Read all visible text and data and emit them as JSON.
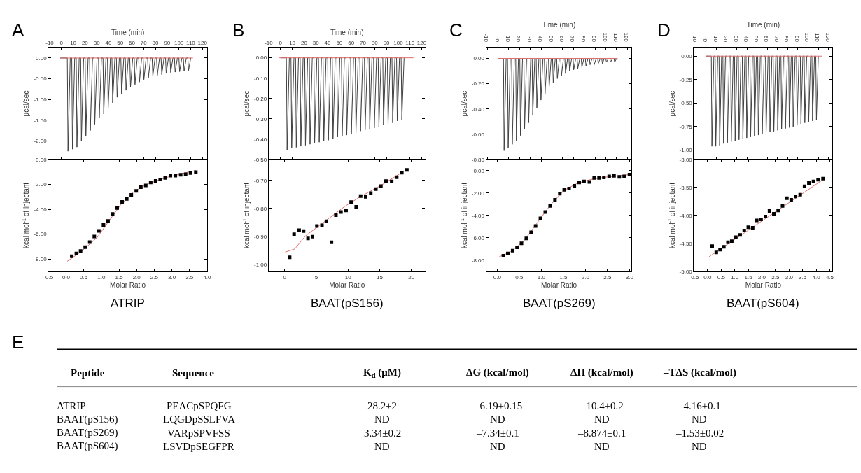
{
  "chart_data": [
    {
      "type": "line",
      "title": "A",
      "xlabel": "Time (min)",
      "ylabel": "μcal/sec",
      "xlim": [
        -11,
        124
      ],
      "xticks": [
        -10,
        0,
        10,
        20,
        30,
        40,
        50,
        60,
        70,
        80,
        90,
        100,
        110,
        120
      ],
      "ylim": [
        -2.45,
        0.25
      ],
      "yticks": [
        {
          "value": 0,
          "label": "0.00"
        },
        {
          "value": -0.5,
          "label": "-0.50"
        },
        {
          "value": -1,
          "label": "-1.00"
        },
        {
          "value": -1.5,
          "label": "-1.50"
        },
        {
          "value": -2,
          "label": "-2.00"
        }
      ],
      "series": [
        {
          "color": "#404040",
          "marker": "none",
          "x": [
            -1,
            5,
            5.6,
            7.5,
            8.8,
            9.4,
            11.3,
            12.6,
            13.2,
            15.1,
            16.4,
            17,
            18.9,
            20.2,
            20.8,
            22.7,
            24,
            24.6,
            26.5,
            27.8,
            28.4,
            30.3,
            31.6,
            32.2,
            34.1,
            35.4,
            36,
            37.9,
            39.2,
            39.8,
            41.7,
            43,
            43.6,
            45.5,
            46.8,
            47.4,
            49.3,
            50.6,
            51.2,
            53.1,
            54.4,
            55,
            56.9,
            58.2,
            58.8,
            60.7,
            62,
            62.6,
            64.5,
            65.8,
            66.4,
            68.3,
            69.6,
            70.2,
            72.1,
            73.4,
            74,
            75.9,
            77.2,
            77.8,
            79.7,
            81,
            81.6,
            83.5,
            84.8,
            85.4,
            87.3,
            88.6,
            89.2,
            91.1,
            92.4,
            93,
            94.9,
            96.2,
            96.8,
            98.7,
            100,
            100.6,
            102.5,
            103.8,
            104.4,
            106.3,
            107.6,
            108.2,
            110.1
          ],
          "values": [
            0,
            0,
            -2.25,
            0,
            0,
            -2.2,
            0,
            0,
            -2.15,
            0,
            0,
            -2.0,
            0,
            0,
            -1.88,
            0,
            0,
            -1.75,
            0,
            0,
            -1.6,
            0,
            0,
            -1.45,
            0,
            0,
            -1.35,
            0,
            0,
            -1.2,
            0,
            0,
            -1.08,
            0,
            0,
            -0.95,
            0,
            0,
            -0.88,
            0,
            0,
            -0.78,
            0,
            0,
            -0.7,
            0,
            0,
            -0.64,
            0,
            0,
            -0.58,
            0,
            0,
            -0.52,
            0,
            0,
            -0.48,
            0,
            0,
            -0.44,
            0,
            0,
            -0.42,
            0,
            0,
            -0.4,
            0,
            0,
            -0.37,
            0,
            0,
            -0.35,
            0,
            0,
            -0.34,
            0,
            0,
            -0.33,
            0,
            0,
            -0.32,
            0,
            0,
            -0.3,
            0
          ]
        },
        {
          "color": "#e07070",
          "marker": "none",
          "x": [
            -1,
            112
          ],
          "values": [
            0,
            0
          ]
        }
      ]
    },
    {
      "type": "scatter",
      "xlabel": "Molar Ratio",
      "ylabel": "kcal mol$^{-1}$ of injectant",
      "annotations": [
        "ATRIP"
      ],
      "xlim": [
        -0.5,
        4.0
      ],
      "xticks": [
        -0.5,
        {
          "value": 0,
          "label": "0.0"
        },
        0.5,
        {
          "value": 1,
          "label": "1.0"
        },
        1.5,
        {
          "value": 2,
          "label": "2.0"
        },
        2.5,
        {
          "value": 3,
          "label": "3.0"
        },
        3.5,
        {
          "value": 4,
          "label": "4.0"
        }
      ],
      "ylim": [
        -9,
        0
      ],
      "yticks": [
        {
          "value": 0,
          "label": "0.00"
        },
        {
          "value": -2,
          "label": "-2.00"
        },
        {
          "value": -4,
          "label": "-4.00"
        },
        {
          "value": -6,
          "label": "-6.00"
        },
        {
          "value": -8,
          "label": "-8.00"
        }
      ],
      "series": [
        {
          "type": "line",
          "color": "#e07070",
          "marker": "none",
          "x": [
            0.03,
            0.42,
            0.88,
            1.21,
            1.54,
            1.93,
            2.33,
            2.85,
            3.38,
            3.68
          ],
          "values": [
            -8.19,
            -7.43,
            -6.28,
            -4.97,
            -3.67,
            -2.56,
            -1.94,
            -1.44,
            -1.07,
            -0.88
          ]
        },
        {
          "color": "#000000",
          "marker": "square",
          "x": [
            0.16,
            0.29,
            0.41,
            0.54,
            0.67,
            0.8,
            0.93,
            1.06,
            1.19,
            1.32,
            1.45,
            1.59,
            1.72,
            1.85,
            1.99,
            2.12,
            2.26,
            2.4,
            2.54,
            2.67,
            2.81,
            2.96,
            3.1,
            3.25,
            3.39,
            3.53,
            3.68
          ],
          "values": [
            -7.78,
            -7.56,
            -7.37,
            -7.06,
            -6.65,
            -6.2,
            -5.74,
            -5.27,
            -4.94,
            -4.38,
            -3.9,
            -3.41,
            -3.17,
            -2.84,
            -2.52,
            -2.22,
            -2.09,
            -1.85,
            -1.72,
            -1.61,
            -1.48,
            -1.29,
            -1.29,
            -1.22,
            -1.18,
            -1.09,
            -1.01
          ]
        }
      ]
    },
    {
      "type": "line",
      "title": "B",
      "xlabel": "Time (min)",
      "ylabel": "μcal/sec",
      "xlim": [
        -10,
        123
      ],
      "xticks": [
        -10,
        0,
        10,
        20,
        30,
        40,
        50,
        60,
        70,
        80,
        90,
        100,
        110,
        120
      ],
      "ylim": [
        -0.5,
        0.05
      ],
      "yticks": [
        {
          "value": 0,
          "label": "0.00"
        },
        {
          "value": -0.1,
          "label": "-0.10"
        },
        {
          "value": -0.2,
          "label": "-0.20"
        },
        {
          "value": -0.3,
          "label": "-0.30"
        },
        {
          "value": -0.4,
          "label": "-0.40"
        },
        {
          "value": -0.5,
          "label": "-0.50"
        }
      ],
      "series": [
        {
          "color": "#404040",
          "marker": "none",
          "x": [
            0,
            5,
            5.6,
            7.5,
            8.9,
            9.5,
            11.4,
            12.8,
            13.4,
            15.3,
            16.7,
            17.3,
            19.2,
            20.6,
            21.2,
            23.1,
            24.5,
            25.1,
            27,
            28.4,
            29,
            30.9,
            32.3,
            32.9,
            34.8,
            36.2,
            36.8,
            38.7,
            40.1,
            40.7,
            42.6,
            44,
            44.6,
            46.5,
            47.9,
            48.5,
            50.4,
            51.8,
            52.4,
            54.3,
            55.7,
            56.3,
            58.2,
            59.6,
            60.2,
            62.1,
            63.5,
            64.1,
            66,
            67.4,
            68,
            69.9,
            71.3,
            71.9,
            73.8,
            75.2,
            75.8,
            77.7,
            79.1,
            79.7,
            81.6,
            83,
            83.6,
            85.5,
            86.9,
            87.5,
            89.4,
            90.8,
            91.4,
            93.3,
            94.7,
            95.3,
            97.2,
            98.6,
            99.2,
            101.1,
            102.5,
            103.1,
            105
          ],
          "values": [
            0,
            0,
            -0.452,
            0,
            0,
            -0.445,
            0,
            0,
            -0.44,
            0,
            0,
            -0.435,
            0,
            0,
            -0.43,
            0,
            0,
            -0.425,
            0,
            0,
            -0.42,
            0,
            0,
            -0.415,
            0,
            0,
            -0.41,
            0,
            0,
            -0.405,
            0,
            0,
            -0.4,
            0,
            0,
            -0.39,
            0,
            0,
            -0.385,
            0,
            0,
            -0.38,
            0,
            0,
            -0.375,
            0,
            0,
            -0.37,
            0,
            0,
            -0.36,
            0,
            0,
            -0.355,
            0,
            0,
            -0.35,
            0,
            0,
            -0.345,
            0,
            0,
            -0.34,
            0,
            0,
            -0.33,
            0,
            0,
            -0.325,
            0,
            0,
            -0.32,
            0,
            0,
            -0.31,
            0,
            0,
            -0.305,
            0
          ]
        },
        {
          "color": "#e07070",
          "marker": "none",
          "x": [
            -1,
            113
          ],
          "values": [
            0,
            0
          ]
        }
      ]
    },
    {
      "type": "scatter",
      "xlabel": "Molar Ratio",
      "ylabel": "kcal mol$^{-1}$ of injectant",
      "annotations": [
        "BAAT(pS156)"
      ],
      "xlim": [
        -2.5,
        22.2
      ],
      "xticks": [
        0,
        5,
        10,
        15,
        20
      ],
      "ylim": [
        -1.025,
        -0.625
      ],
      "yticks": [
        {
          "value": -0.7,
          "label": "-0.70"
        },
        {
          "value": -0.8,
          "label": "-0.80"
        },
        {
          "value": -0.9,
          "label": "-0.90"
        },
        {
          "value": -1.0,
          "label": "-1.00"
        }
      ],
      "series": [
        {
          "type": "line",
          "color": "#e07070",
          "marker": "none",
          "x": [
            0.1,
            1.6,
            3.3,
            5.5,
            9.6,
            12.1,
            15.1,
            19.4
          ],
          "values": [
            -0.956,
            -0.945,
            -0.898,
            -0.861,
            -0.791,
            -0.756,
            -0.719,
            -0.659
          ]
        },
        {
          "color": "#000000",
          "marker": "square",
          "x": [
            0.8,
            1.5,
            2.3,
            3.0,
            3.7,
            4.4,
            5.1,
            5.9,
            6.6,
            7.4,
            8.1,
            8.9,
            9.7,
            10.5,
            11.3,
            12.0,
            12.8,
            13.6,
            14.4,
            15.2,
            16.0,
            16.9,
            17.7,
            18.5,
            19.3
          ],
          "values": [
            -0.975,
            -0.892,
            -0.878,
            -0.881,
            -0.907,
            -0.901,
            -0.863,
            -0.86,
            -0.846,
            -0.921,
            -0.824,
            -0.813,
            -0.807,
            -0.777,
            -0.794,
            -0.756,
            -0.758,
            -0.745,
            -0.731,
            -0.72,
            -0.702,
            -0.703,
            -0.688,
            -0.672,
            -0.662
          ]
        }
      ]
    },
    {
      "type": "line",
      "title": "C",
      "xlabel": "Time (min)",
      "ylabel": "μcal/sec",
      "xlim": [
        -11,
        124
      ],
      "xticks": [
        -10,
        0,
        10,
        20,
        30,
        40,
        50,
        60,
        70,
        80,
        90,
        100,
        110,
        120
      ],
      "ylim": [
        -0.8,
        0.085
      ],
      "yticks": [
        {
          "value": 0,
          "label": "0.00"
        },
        {
          "value": -0.2,
          "label": "-0.20"
        },
        {
          "value": -0.4,
          "label": "-0.40"
        },
        {
          "value": -0.6,
          "label": "-0.60"
        },
        {
          "value": -0.8,
          "label": "-0.80"
        }
      ],
      "series": [
        {
          "color": "#404040",
          "marker": "none",
          "x": [
            0,
            5,
            5.6,
            7.5,
            8.8,
            9.4,
            11.3,
            12.6,
            13.2,
            15.1,
            16.4,
            17,
            18.9,
            20.2,
            20.8,
            22.7,
            24,
            24.6,
            26.5,
            27.8,
            28.4,
            30.3,
            31.6,
            32.2,
            34.1,
            35.4,
            36,
            37.9,
            39.2,
            39.8,
            41.7,
            43,
            43.6,
            45.5,
            46.8,
            47.4,
            49.3,
            50.6,
            51.2,
            53.1,
            54.4,
            55,
            56.9,
            58.2,
            58.8,
            60.7,
            62,
            62.6,
            64.5,
            65.8,
            66.4,
            68.3,
            69.6,
            70.2,
            72.1,
            73.4,
            74,
            75.9,
            77.2,
            77.8,
            79.7,
            81,
            81.6,
            83.5,
            84.8,
            85.4,
            87.3,
            88.6,
            89.2,
            91.1,
            92.4,
            93,
            94.9,
            96.2,
            96.8,
            98.7,
            100,
            100.6,
            102.5,
            103.8,
            104.4,
            106.3,
            107.6,
            108.2,
            110.1
          ],
          "values": [
            0,
            0,
            -0.73,
            0,
            0,
            -0.71,
            0,
            0,
            -0.68,
            0,
            0,
            -0.65,
            0,
            0,
            -0.61,
            0,
            0,
            -0.56,
            0,
            0,
            -0.51,
            0,
            0,
            -0.45,
            0,
            0,
            -0.39,
            0,
            0,
            -0.33,
            0,
            0,
            -0.28,
            0,
            0,
            -0.23,
            0,
            0,
            -0.19,
            0,
            0,
            -0.16,
            0,
            0,
            -0.14,
            0,
            0,
            -0.12,
            0,
            0,
            -0.1,
            0,
            0,
            -0.09,
            0,
            0,
            -0.08,
            0,
            0,
            -0.07,
            0,
            0,
            -0.06,
            0,
            0,
            -0.05,
            0,
            0,
            -0.05,
            0,
            0,
            -0.04,
            0,
            0,
            -0.04,
            0,
            0,
            -0.03,
            0,
            0,
            -0.03,
            0,
            0,
            -0.03,
            0
          ]
        },
        {
          "color": "#e07070",
          "marker": "none",
          "x": [
            0,
            111
          ],
          "values": [
            0,
            0
          ]
        }
      ]
    },
    {
      "type": "scatter",
      "xlabel": "Molar Ratio",
      "ylabel": "kcal mol$^{-1}$ of injectant",
      "annotations": [
        "BAAT(pS269)"
      ],
      "xlim": [
        -0.25,
        3.05
      ],
      "xticks": [
        {
          "value": 0,
          "label": "0.0"
        },
        0.5,
        {
          "value": 1,
          "label": "1.0"
        },
        1.5,
        {
          "value": 2,
          "label": "2.0"
        },
        2.5,
        {
          "value": 3,
          "label": "3.0"
        }
      ],
      "ylim": [
        -9,
        1
      ],
      "yticks": [
        {
          "value": 0,
          "label": "0.00"
        },
        {
          "value": -2,
          "label": "-2.00"
        },
        {
          "value": -4,
          "label": "-4.00"
        },
        {
          "value": -6,
          "label": "-6.00"
        },
        {
          "value": -8,
          "label": "-8.00"
        }
      ],
      "series": [
        {
          "type": "line",
          "color": "#e07070",
          "marker": "none",
          "x": [
            0.02,
            0.3,
            0.6,
            0.9,
            1.2,
            1.5,
            1.8,
            2.1,
            2.5,
            3.0
          ],
          "values": [
            -7.75,
            -7.25,
            -6.3,
            -4.7,
            -3.1,
            -1.8,
            -1.15,
            -0.8,
            -0.55,
            -0.35
          ]
        },
        {
          "color": "#000000",
          "marker": "square",
          "x": [
            0.14,
            0.24,
            0.35,
            0.45,
            0.55,
            0.66,
            0.77,
            0.87,
            0.98,
            1.09,
            1.2,
            1.31,
            1.42,
            1.52,
            1.63,
            1.75,
            1.86,
            1.97,
            2.09,
            2.2,
            2.31,
            2.42,
            2.54,
            2.65,
            2.77,
            2.88,
            3.0
          ],
          "values": [
            -7.6,
            -7.4,
            -7.15,
            -6.85,
            -6.5,
            -6.05,
            -5.5,
            -4.95,
            -4.25,
            -3.7,
            -3.15,
            -2.6,
            -2.05,
            -1.7,
            -1.6,
            -1.35,
            -1.05,
            -0.95,
            -1.0,
            -0.65,
            -0.65,
            -0.6,
            -0.5,
            -0.45,
            -0.55,
            -0.5,
            -0.35
          ]
        }
      ]
    },
    {
      "type": "line",
      "title": "D",
      "xlabel": "Time (min)",
      "ylabel": "μcal/sec",
      "xlim": [
        -12,
        124
      ],
      "xticks": [
        -10,
        0,
        10,
        20,
        30,
        40,
        50,
        60,
        70,
        80,
        90,
        100,
        110,
        120
      ],
      "ylim": [
        -1.1,
        0.09
      ],
      "yticks": [
        {
          "value": 0,
          "label": "0.00"
        },
        {
          "value": -0.25,
          "label": "-0.25"
        },
        {
          "value": -0.5,
          "label": "-0.50"
        },
        {
          "value": -0.75,
          "label": "-0.75"
        },
        {
          "value": -1,
          "label": "-1.00"
        }
      ],
      "series": [
        {
          "color": "#404040",
          "marker": "none",
          "x": [
            0,
            5,
            5.6,
            7.5,
            8.8,
            9.4,
            11.3,
            12.6,
            13.2,
            15.1,
            16.4,
            17,
            18.9,
            20.2,
            20.8,
            22.7,
            24,
            24.6,
            26.5,
            27.8,
            28.4,
            30.3,
            31.6,
            32.2,
            34.1,
            35.4,
            36,
            37.9,
            39.2,
            39.8,
            41.7,
            43,
            43.6,
            45.5,
            46.8,
            47.4,
            49.3,
            50.6,
            51.2,
            53.1,
            54.4,
            55,
            56.9,
            58.2,
            58.8,
            60.7,
            62,
            62.6,
            64.5,
            65.8,
            66.4,
            68.3,
            69.6,
            70.2,
            72.1,
            73.4,
            74,
            75.9,
            77.2,
            77.8,
            79.7,
            81,
            81.6,
            83.5,
            84.8,
            85.4,
            87.3,
            88.6,
            89.2,
            91.1,
            92.4,
            93,
            94.9,
            96.2,
            96.8,
            98.7,
            100,
            100.6,
            102.5,
            103.8,
            104.4,
            106.3,
            107.6,
            108.2,
            110.1
          ],
          "values": [
            0,
            0,
            -0.96,
            0,
            0,
            -0.96,
            0,
            0,
            -0.95,
            0,
            0,
            -0.93,
            0,
            0,
            -0.92,
            0,
            0,
            -0.91,
            0,
            0,
            -0.9,
            0,
            0,
            -0.89,
            0,
            0,
            -0.88,
            0,
            0,
            -0.87,
            0,
            0,
            -0.86,
            0,
            0,
            -0.85,
            0,
            0,
            -0.84,
            0,
            0,
            -0.83,
            0,
            0,
            -0.82,
            0,
            0,
            -0.81,
            0,
            0,
            -0.8,
            0,
            0,
            -0.79,
            0,
            0,
            -0.78,
            0,
            0,
            -0.77,
            0,
            0,
            -0.76,
            0,
            0,
            -0.75,
            0,
            0,
            -0.73,
            0,
            0,
            -0.72,
            0,
            0,
            -0.71,
            0,
            0,
            -0.7,
            0,
            0,
            -0.69,
            0,
            0,
            -0.68,
            0
          ]
        },
        {
          "color": "#e07070",
          "marker": "none",
          "x": [
            0,
            114
          ],
          "values": [
            0,
            0
          ]
        }
      ]
    },
    {
      "type": "scatter",
      "xlabel": "Molar Ratio",
      "ylabel": "kcal mol$^{-1}$ of injectant",
      "annotations": [
        "BAAT(pS604)"
      ],
      "xlim": [
        -0.5,
        4.6
      ],
      "xticks": [
        -0.5,
        {
          "value": 0,
          "label": "0.0"
        },
        0.5,
        {
          "value": 1,
          "label": "1.0"
        },
        1.5,
        {
          "value": 2,
          "label": "2.0"
        },
        2.5,
        {
          "value": 3,
          "label": "3.0"
        },
        3.5,
        {
          "value": 4,
          "label": "4.0"
        },
        4.5
      ],
      "ylim": [
        -5,
        -3
      ],
      "yticks": [
        {
          "value": -3,
          "label": "-3.00"
        },
        {
          "value": -3.5,
          "label": "-3.50"
        },
        {
          "value": -4,
          "label": "-4.00"
        },
        {
          "value": -4.5,
          "label": "-4.50"
        },
        {
          "value": -5,
          "label": "-5.00"
        }
      ],
      "series": [
        {
          "type": "line",
          "color": "#e07070",
          "marker": "none",
          "x": [
            0.05,
            4.25
          ],
          "values": [
            -4.74,
            -3.36
          ]
        },
        {
          "color": "#000000",
          "marker": "square",
          "x": [
            0.17,
            0.32,
            0.46,
            0.6,
            0.75,
            0.89,
            1.04,
            1.2,
            1.35,
            1.5,
            1.66,
            1.81,
            1.97,
            2.13,
            2.28,
            2.44,
            2.6,
            2.76,
            2.92,
            3.08,
            3.24,
            3.41,
            3.57,
            3.73,
            3.9,
            4.07,
            4.25
          ],
          "values": [
            -4.55,
            -4.66,
            -4.61,
            -4.56,
            -4.48,
            -4.46,
            -4.39,
            -4.35,
            -4.27,
            -4.21,
            -4.22,
            -4.09,
            -4.07,
            -4.02,
            -3.92,
            -3.97,
            -3.91,
            -3.83,
            -3.69,
            -3.72,
            -3.66,
            -3.63,
            -3.48,
            -3.42,
            -3.39,
            -3.36,
            -3.34
          ]
        }
      ]
    },
    {
      "type": "other",
      "title": "E",
      "annotations": [
        "Peptide",
        "Sequence",
        "K$_{d}$ (μM)",
        "ΔG (kcal/mol)",
        "ΔH (kcal/mol)",
        "–TΔS (kcal/mol)",
        "ATRIP",
        "PEACpSPQFG",
        "28.2±2",
        "–6.19±0.15",
        "–10.4±0.2",
        "–4.16±0.1",
        "BAAT(pS156)",
        "LQGDpSSLFVA",
        "ND",
        "ND",
        "ND",
        "ND",
        "BAAT(pS269)",
        "VARpSPVFSS",
        "3.34±0.2",
        "–7.34±0.1",
        "–8.874±0.1",
        "–1.53±0.02",
        "BAAT(pS604)",
        "LSVDpSEGFPR",
        "ND",
        "ND",
        "ND",
        "ND"
      ]
    }
  ]
}
